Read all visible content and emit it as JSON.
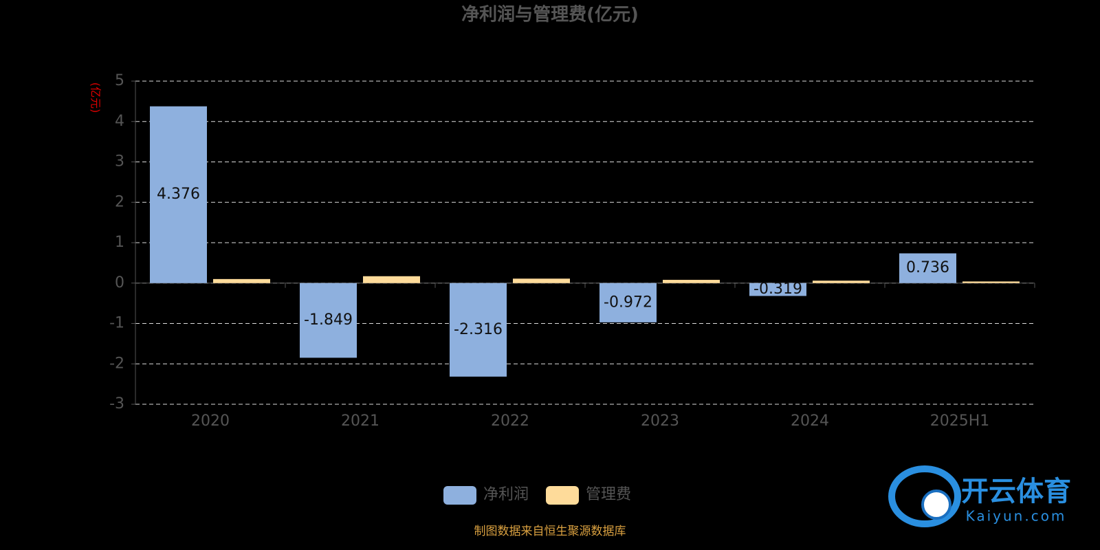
{
  "chart_data": {
    "type": "bar",
    "title": "净利润与管理费(亿元)",
    "y_label": "(亿元)",
    "categories": [
      "2020",
      "2021",
      "2022",
      "2023",
      "2024",
      "2025H1"
    ],
    "series": [
      {
        "name": "净利润",
        "color": "#8eb0de",
        "values": [
          4.376,
          -1.849,
          -2.316,
          -0.972,
          -0.319,
          0.736
        ],
        "show_labels": true
      },
      {
        "name": "管理费",
        "color": "#fedb9a",
        "values": [
          0.1,
          0.17,
          0.11,
          0.08,
          0.06,
          0.04
        ],
        "show_labels": false
      }
    ],
    "ylim": [
      -3,
      5
    ],
    "yticks": [
      -3,
      -2,
      -1,
      0,
      1,
      2,
      3,
      4,
      5
    ],
    "grid": true
  },
  "source": "制图数据来自恒生聚源数据库",
  "watermark": {
    "brand": "开云体育",
    "url": "Kaiyun.com"
  }
}
